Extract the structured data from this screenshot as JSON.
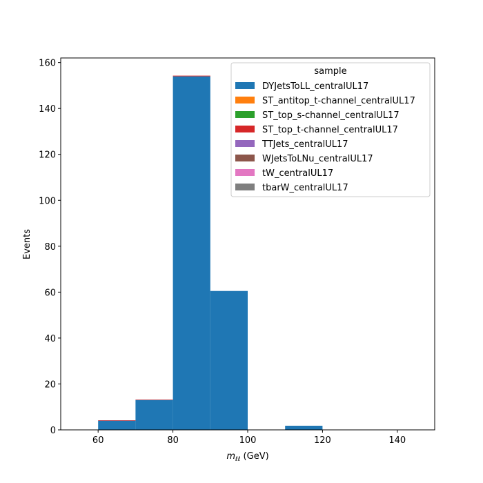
{
  "chart_data": {
    "type": "bar",
    "histtype": "stacked-fill",
    "x_edges": [
      50,
      60,
      70,
      80,
      90,
      100,
      110,
      120,
      130,
      140,
      150
    ],
    "series": [
      {
        "name": "DYJetsToLL_centralUL17",
        "color": "#1f77b4",
        "values": [
          0,
          4,
          13,
          154,
          60.5,
          0,
          1.8,
          0,
          0,
          0
        ]
      },
      {
        "name": "ST_antitop_t-channel_centralUL17",
        "color": "#ff7f0e",
        "values": [
          0,
          0,
          0,
          0,
          0,
          0,
          0,
          0,
          0,
          0
        ]
      },
      {
        "name": "ST_top_s-channel_centralUL17",
        "color": "#2ca02c",
        "values": [
          0,
          0,
          0,
          0,
          0,
          0,
          0,
          0,
          0,
          0
        ]
      },
      {
        "name": "ST_top_t-channel_centralUL17",
        "color": "#d62728",
        "values": [
          0,
          0.2,
          0.2,
          0.3,
          0,
          0,
          0,
          0,
          0,
          0
        ]
      },
      {
        "name": "TTJets_centralUL17",
        "color": "#9467bd",
        "values": [
          0,
          0,
          0,
          0,
          0,
          0,
          0,
          0,
          0,
          0
        ]
      },
      {
        "name": "WJetsToLNu_centralUL17",
        "color": "#8c564b",
        "values": [
          0,
          0,
          0,
          0,
          0,
          0,
          0,
          0,
          0,
          0
        ]
      },
      {
        "name": "tW_centralUL17",
        "color": "#e377c2",
        "values": [
          0,
          0,
          0,
          0,
          0,
          0,
          0,
          0,
          0,
          0
        ]
      },
      {
        "name": "tbarW_centralUL17",
        "color": "#7f7f7f",
        "values": [
          0,
          0,
          0,
          0,
          0,
          0,
          0,
          0,
          0,
          0
        ]
      }
    ],
    "xlabel_main": "m",
    "xlabel_sub": "ℓℓ",
    "xlabel_unit": " (GeV)",
    "ylabel": "Events",
    "xlim": [
      50,
      150
    ],
    "ylim": [
      0,
      162
    ],
    "xticks": [
      60,
      80,
      100,
      120,
      140
    ],
    "yticks": [
      0,
      20,
      40,
      60,
      80,
      100,
      120,
      140,
      160
    ],
    "legend_title": "sample",
    "legend_position": "top-right",
    "grid": false
  }
}
